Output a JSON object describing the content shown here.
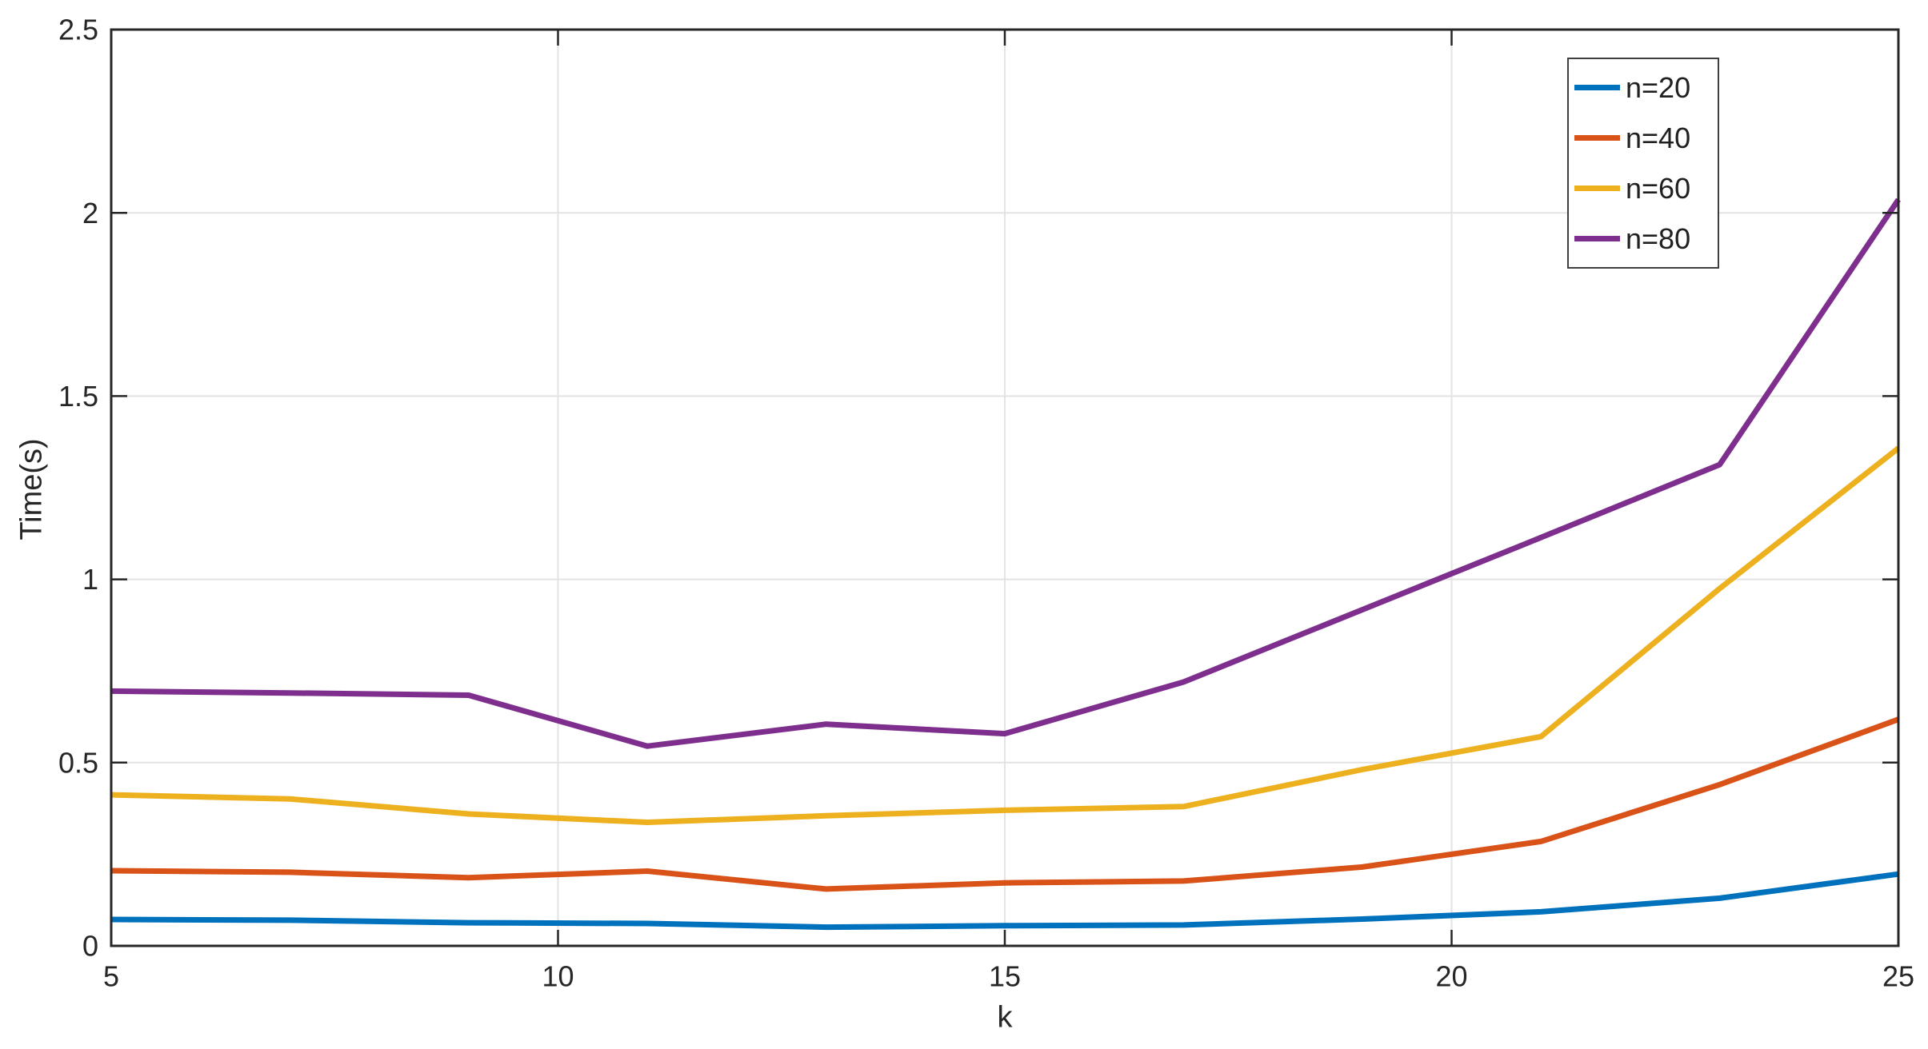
{
  "figure": {
    "background": "#ffffff"
  },
  "style": {
    "axis_color": "#262626",
    "grid_color": "#e3e3e3",
    "tick_label_color": "#262626",
    "line_width": 7
  },
  "chart_data": {
    "type": "line",
    "title": "",
    "xlabel": "k",
    "ylabel": "Time(s)",
    "xlim": [
      5,
      25
    ],
    "ylim": [
      0,
      2.5
    ],
    "grid": true,
    "legend_position": "top-right",
    "xticks": [
      5,
      10,
      15,
      20,
      25
    ],
    "xtick_labels": [
      "5",
      "10",
      "15",
      "20",
      "25"
    ],
    "yticks": [
      0,
      0.5,
      1,
      1.5,
      2,
      2.5
    ],
    "ytick_labels": [
      "0",
      "0.5",
      "1",
      "1.5",
      "2",
      "2.5"
    ],
    "x": [
      5,
      7,
      9,
      11,
      13,
      15,
      17,
      19,
      21,
      23,
      25
    ],
    "series": [
      {
        "name": "n=20",
        "color": "#0072BD",
        "values": [
          0.072,
          0.07,
          0.063,
          0.061,
          0.051,
          0.055,
          0.057,
          0.073,
          0.093,
          0.13,
          0.196
        ]
      },
      {
        "name": "n=40",
        "color": "#D95319",
        "values": [
          0.205,
          0.201,
          0.186,
          0.204,
          0.155,
          0.172,
          0.177,
          0.215,
          0.285,
          0.44,
          0.618
        ]
      },
      {
        "name": "n=60",
        "color": "#EDB120",
        "values": [
          0.412,
          0.401,
          0.36,
          0.337,
          0.355,
          0.37,
          0.38,
          0.481,
          0.571,
          0.975,
          1.358
        ]
      },
      {
        "name": "n=80",
        "color": "#7E2F8E",
        "values": [
          0.695,
          0.69,
          0.684,
          0.545,
          0.605,
          0.579,
          0.72,
          0.917,
          1.114,
          1.313,
          2.036
        ]
      }
    ]
  }
}
